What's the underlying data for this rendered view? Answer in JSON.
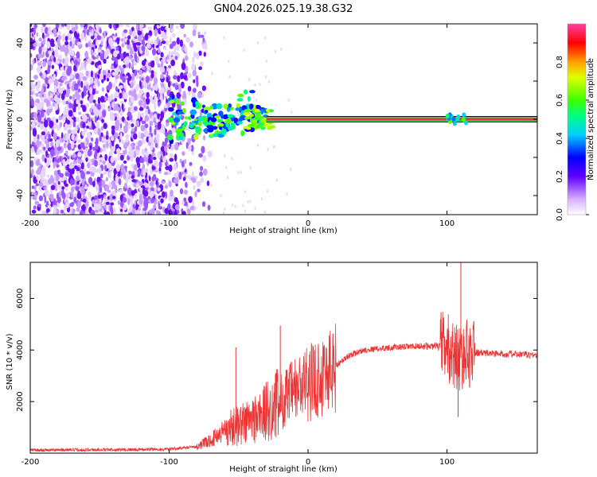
{
  "title": "GN04.2026.025.19.38.G32",
  "chart_data": [
    {
      "type": "heatmap",
      "xlabel": "Height of straight line (km)",
      "ylabel": "Frequency (Hz)",
      "xlim": [
        -200,
        165
      ],
      "ylim": [
        -50,
        50
      ],
      "x_ticks": [
        "-200",
        "-100",
        "0",
        "100"
      ],
      "x_tick_values": [
        -200,
        -100,
        0,
        100
      ],
      "y_ticks": [
        "-40",
        "-20",
        "0",
        "20",
        "40"
      ],
      "y_tick_values": [
        -40,
        -20,
        0,
        20,
        40
      ],
      "noise_region_km": [
        -200,
        -78
      ],
      "carrier_frequency_hz": 0,
      "carrier_start_km": -30,
      "colorbar": {
        "label": "Normalized spectral amplitude",
        "range": [
          0,
          1
        ],
        "ticks": [
          "0.0",
          "0.2",
          "0.4",
          "0.6",
          "0.8"
        ],
        "tick_values": [
          0,
          0.2,
          0.4,
          0.6,
          0.8
        ]
      }
    },
    {
      "type": "line",
      "xlabel": "Height of straight line (km)",
      "ylabel": "SNR (10 * v/v)",
      "xlim": [
        -200,
        165
      ],
      "ylim": [
        0,
        7400
      ],
      "x_ticks": [
        "-200",
        "-100",
        "0",
        "100"
      ],
      "x_tick_values": [
        -200,
        -100,
        0,
        100
      ],
      "y_ticks": [
        "2000",
        "4000",
        "6000"
      ],
      "y_tick_values": [
        2000,
        4000,
        6000
      ],
      "color": "#ee3333",
      "series": [
        {
          "name": "SNR",
          "x": [
            -200,
            -150,
            -100,
            -80,
            -70,
            -60,
            -50,
            -40,
            -30,
            -20,
            -10,
            0,
            10,
            20,
            30,
            40,
            60,
            80,
            90,
            100,
            105,
            110,
            115,
            120,
            140,
            165
          ],
          "values": [
            120,
            130,
            150,
            250,
            500,
            900,
            1100,
            1300,
            1600,
            2000,
            2400,
            2700,
            3000,
            3400,
            3800,
            4000,
            4100,
            4150,
            4150,
            4100,
            3800,
            3700,
            3900,
            3900,
            3850,
            3800
          ]
        }
      ],
      "spikes": [
        {
          "x": -52,
          "value": 4100
        },
        {
          "x": -20,
          "value": 4950
        },
        {
          "x": 110,
          "value": 7400
        },
        {
          "x": 108,
          "value": 1400
        }
      ]
    }
  ]
}
